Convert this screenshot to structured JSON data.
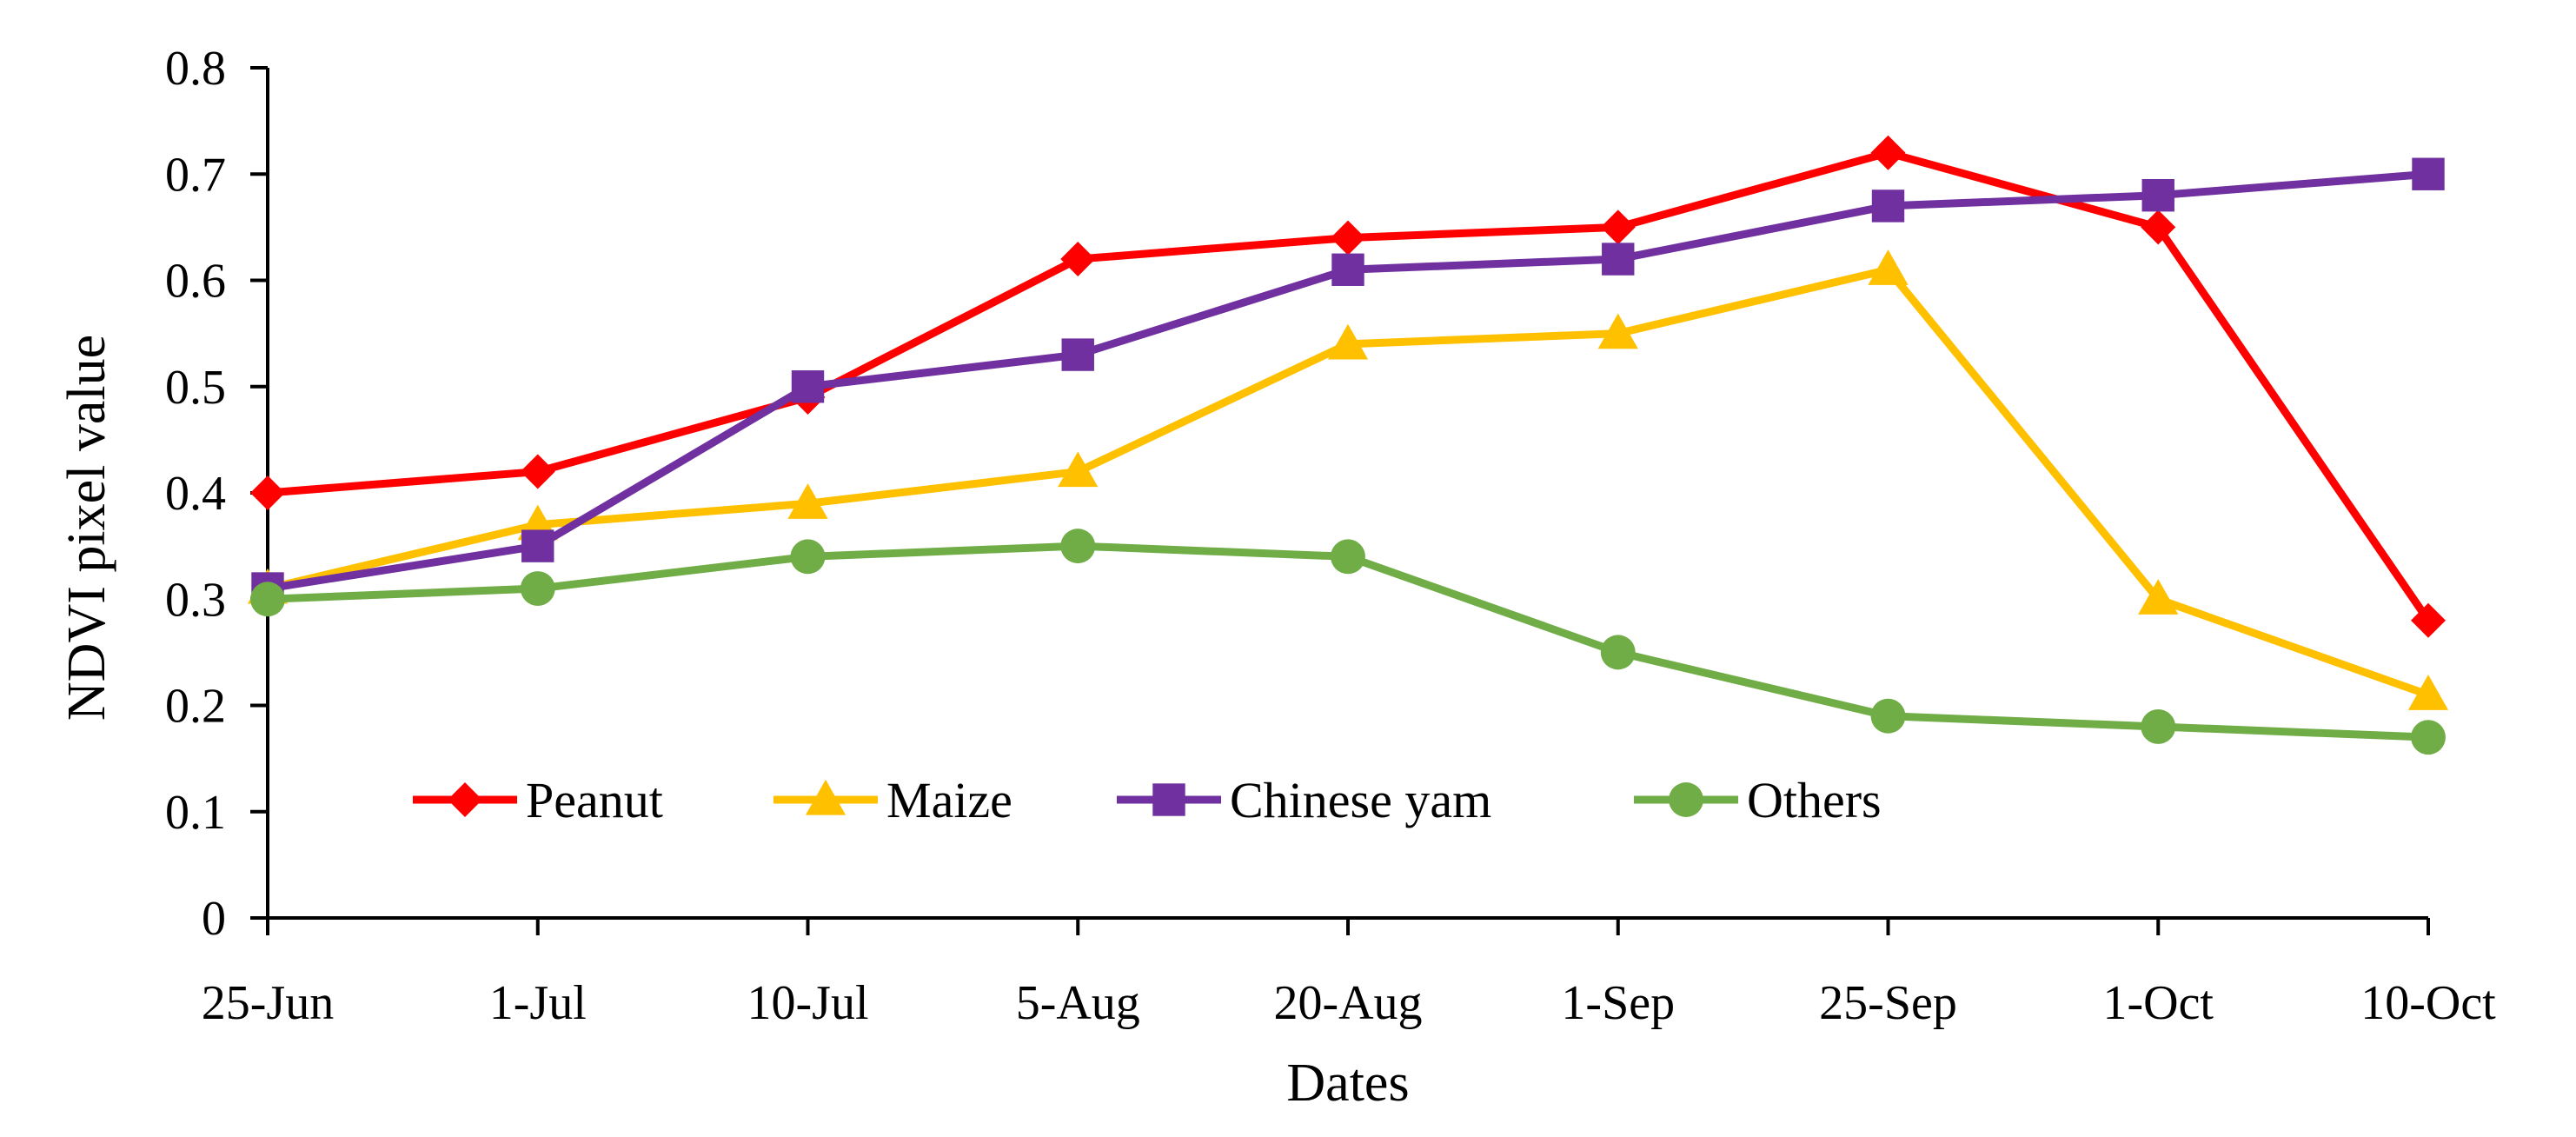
{
  "chart_data": {
    "type": "line",
    "title": "",
    "xlabel": "Dates",
    "ylabel": "NDVI pixel value",
    "categories": [
      "25-Jun",
      "1-Jul",
      "10-Jul",
      "5-Aug",
      "20-Aug",
      "1-Sep",
      "25-Sep",
      "1-Oct",
      "10-Oct"
    ],
    "ylim": [
      0,
      0.8
    ],
    "yticks": [
      "0",
      "0.1",
      "0.2",
      "0.3",
      "0.4",
      "0.5",
      "0.6",
      "0.7",
      "0.8"
    ],
    "grid": false,
    "legend_position": "bottom-left, inside plot",
    "series": [
      {
        "name": "Peanut",
        "color": "#FF0000",
        "marker": "diamond",
        "values": [
          0.4,
          0.42,
          0.49,
          0.62,
          0.64,
          0.65,
          0.72,
          0.65,
          0.28
        ]
      },
      {
        "name": "Maize",
        "color": "#FFC000",
        "marker": "triangle",
        "values": [
          0.31,
          0.37,
          0.39,
          0.42,
          0.54,
          0.55,
          0.61,
          0.3,
          0.21
        ]
      },
      {
        "name": "Chinese yam",
        "color": "#7030A0",
        "marker": "square",
        "values": [
          0.31,
          0.35,
          0.5,
          0.53,
          0.61,
          0.62,
          0.67,
          0.68,
          0.7
        ]
      },
      {
        "name": "Others",
        "color": "#70AD47",
        "marker": "circle",
        "values": [
          0.3,
          0.31,
          0.34,
          0.35,
          0.34,
          0.25,
          0.19,
          0.18,
          0.17
        ]
      }
    ]
  }
}
